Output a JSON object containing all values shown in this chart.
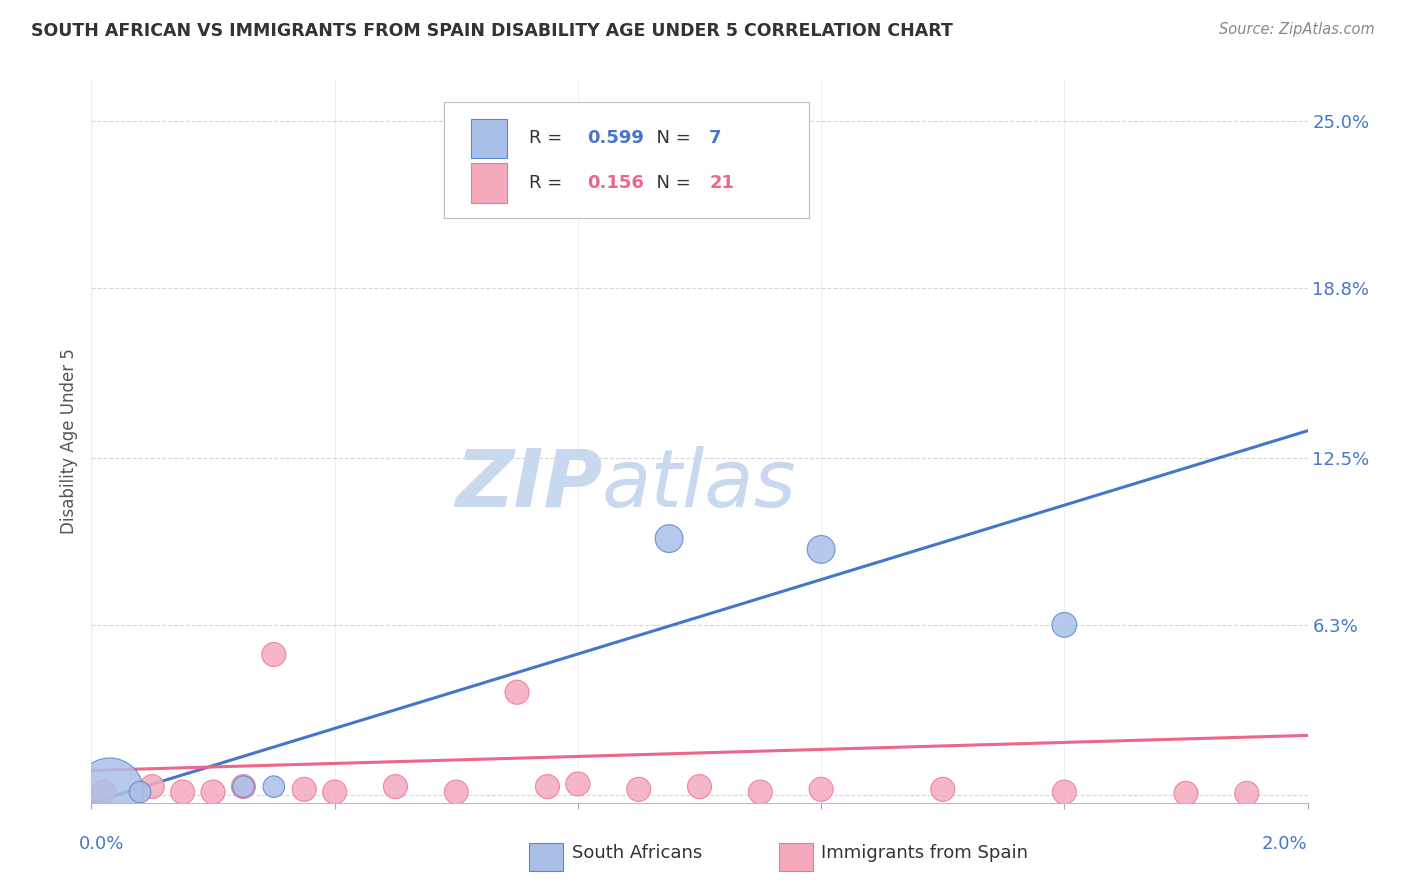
{
  "title": "SOUTH AFRICAN VS IMMIGRANTS FROM SPAIN DISABILITY AGE UNDER 5 CORRELATION CHART",
  "source": "Source: ZipAtlas.com",
  "ylabel": "Disability Age Under 5",
  "ytick_vals": [
    0.0,
    0.063,
    0.125,
    0.188,
    0.25
  ],
  "ytick_labels": [
    "",
    "6.3%",
    "12.5%",
    "18.8%",
    "25.0%"
  ],
  "xlim": [
    0.0,
    0.02
  ],
  "ylim": [
    -0.003,
    0.265
  ],
  "blue_R": "0.599",
  "blue_N": "7",
  "pink_R": "0.156",
  "pink_N": "21",
  "blue_color": "#AABFE8",
  "pink_color": "#F4AABB",
  "blue_edge_color": "#5588CC",
  "pink_edge_color": "#EE7799",
  "blue_line_color": "#4477CC",
  "pink_line_color": "#EE6688",
  "legend_label_blue": "South Africans",
  "legend_label_pink": "Immigrants from Spain",
  "blue_x": [
    0.0003,
    0.0008,
    0.0025,
    0.003,
    0.0095,
    0.012,
    0.016
  ],
  "blue_y": [
    0.001,
    0.001,
    0.003,
    0.003,
    0.095,
    0.091,
    0.063
  ],
  "blue_sizes": [
    600,
    60,
    60,
    60,
    100,
    100,
    80
  ],
  "pink_x": [
    0.0002,
    0.001,
    0.0015,
    0.002,
    0.0025,
    0.003,
    0.0035,
    0.004,
    0.005,
    0.006,
    0.007,
    0.0075,
    0.008,
    0.009,
    0.01,
    0.011,
    0.012,
    0.014,
    0.016,
    0.018,
    0.019
  ],
  "pink_y": [
    0.001,
    0.003,
    0.001,
    0.001,
    0.003,
    0.052,
    0.002,
    0.001,
    0.003,
    0.001,
    0.038,
    0.003,
    0.004,
    0.002,
    0.003,
    0.001,
    0.002,
    0.002,
    0.001,
    0.0005,
    0.0005
  ],
  "pink_sizes": [
    60,
    60,
    60,
    60,
    60,
    60,
    60,
    60,
    60,
    60,
    60,
    60,
    60,
    60,
    60,
    60,
    60,
    60,
    60,
    60,
    60
  ],
  "blue_line_x": [
    0.0,
    0.02
  ],
  "blue_line_y": [
    -0.003,
    0.135
  ],
  "pink_line_x": [
    0.0,
    0.02
  ],
  "pink_line_y": [
    0.009,
    0.022
  ],
  "watermark_zip": "ZIP",
  "watermark_atlas": "atlas",
  "watermark_color": "#C8D8EE",
  "bg_color": "#FFFFFF",
  "grid_color": "#CCCCCC",
  "title_color": "#333333",
  "axis_tick_color": "#4477CC",
  "xtick_positions": [
    0.0,
    0.004,
    0.008,
    0.012,
    0.016,
    0.02
  ]
}
